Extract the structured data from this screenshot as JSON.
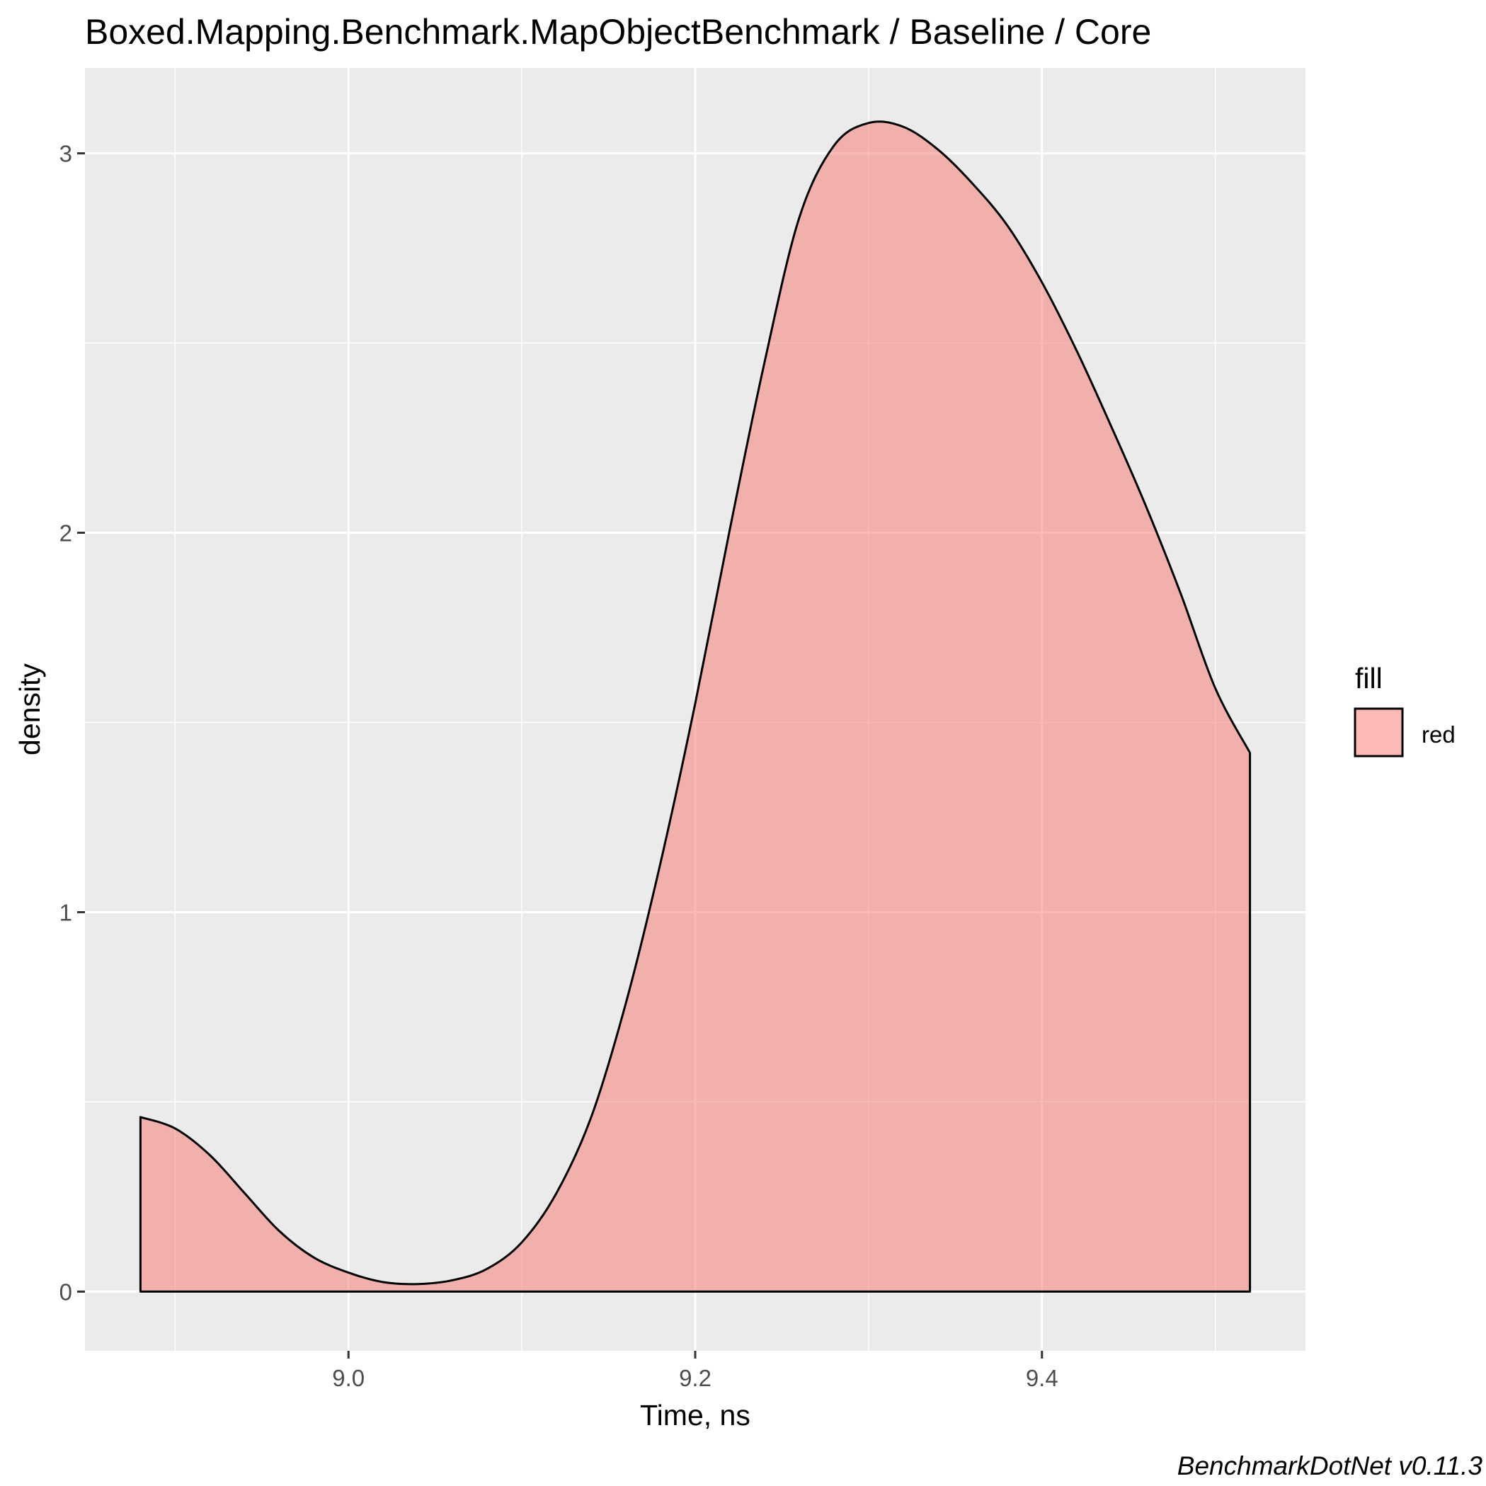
{
  "chart_data": {
    "type": "area",
    "title": "Boxed.Mapping.Benchmark.MapObjectBenchmark / Baseline / Core",
    "xlabel": "Time, ns",
    "ylabel": "density",
    "caption": "BenchmarkDotNet v0.11.3",
    "xlim": [
      8.848,
      9.552
    ],
    "ylim": [
      -0.156,
      3.225
    ],
    "x_ticks": [
      9.0,
      9.2,
      9.4
    ],
    "x_tick_labels": [
      "9.0",
      "9.2",
      "9.4"
    ],
    "y_ticks": [
      0,
      1,
      2,
      3
    ],
    "y_tick_labels": [
      "0",
      "1",
      "2",
      "3"
    ],
    "grid": true,
    "legend": {
      "title": "fill",
      "position": "right",
      "entries": [
        "red"
      ]
    },
    "series": [
      {
        "name": "red",
        "color": "#F8766D",
        "x": [
          8.88,
          8.9,
          8.92,
          8.94,
          8.96,
          8.98,
          9.0,
          9.02,
          9.04,
          9.06,
          9.08,
          9.1,
          9.12,
          9.14,
          9.16,
          9.18,
          9.2,
          9.22,
          9.24,
          9.26,
          9.28,
          9.3,
          9.32,
          9.34,
          9.36,
          9.38,
          9.4,
          9.42,
          9.44,
          9.46,
          9.48,
          9.5,
          9.52
        ],
        "y": [
          0.46,
          0.43,
          0.36,
          0.26,
          0.16,
          0.09,
          0.05,
          0.025,
          0.02,
          0.03,
          0.06,
          0.13,
          0.26,
          0.46,
          0.76,
          1.13,
          1.55,
          2.01,
          2.45,
          2.83,
          3.02,
          3.08,
          3.07,
          3.01,
          2.92,
          2.81,
          2.66,
          2.48,
          2.28,
          2.07,
          1.84,
          1.59,
          1.42
        ]
      }
    ]
  }
}
